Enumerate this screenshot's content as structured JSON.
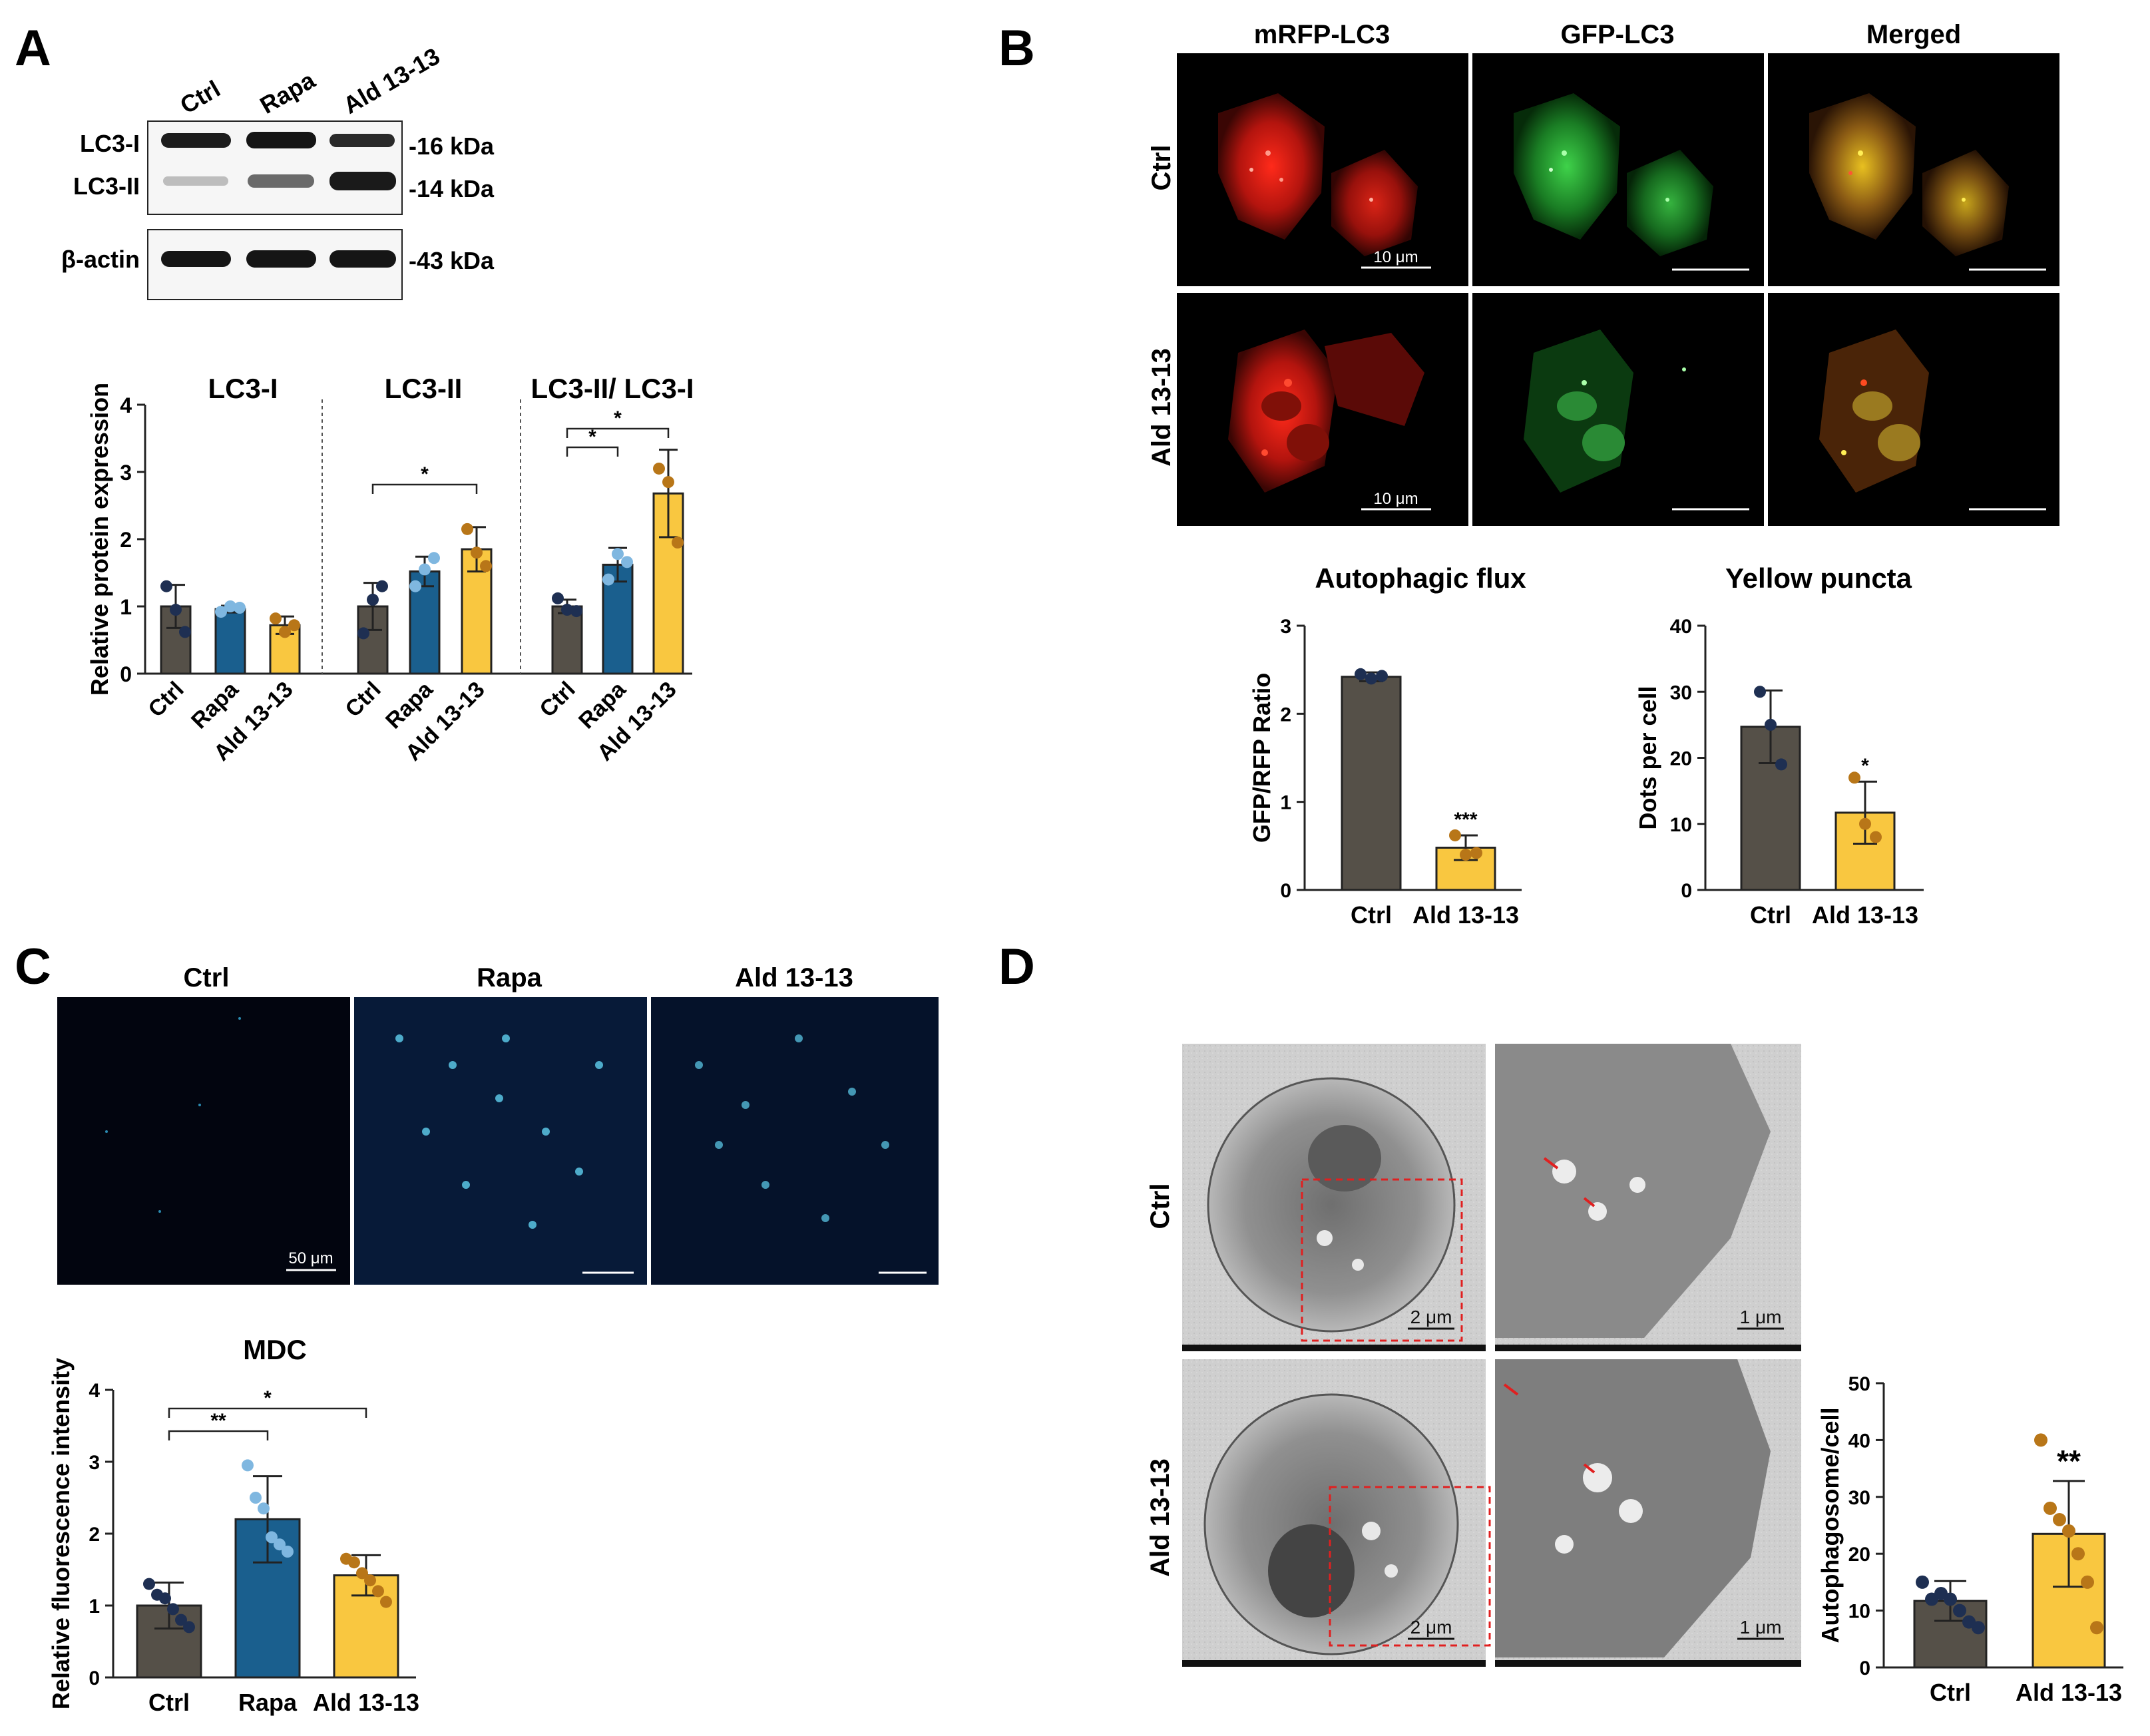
{
  "colors": {
    "ctrl": "#555048",
    "rapa": "#1a5f8e",
    "ald": "#f9c740",
    "ctrl_dot": "#1e2f52",
    "rapa_dot": "#7fb7e0",
    "ald_dot": "#b87618"
  },
  "panels": {
    "A": {
      "letter": "A",
      "blot": {
        "lanes": [
          "Ctrl",
          "Rapa",
          "Ald 13-13"
        ],
        "rows": [
          "LC3-I",
          "LC3-II",
          "β-actin"
        ],
        "sizes": [
          "-16 kDa",
          "-14 kDa",
          "-43 kDa"
        ]
      },
      "ylabel": "Relative protein expression",
      "yticks": [
        "0",
        "1",
        "2",
        "3",
        "4"
      ],
      "xlabels": [
        "Ctrl",
        "Rapa",
        "Ald 13-13"
      ],
      "star": "*"
    },
    "B": {
      "letter": "B",
      "columns": [
        "mRFP-LC3",
        "GFP-LC3",
        "Merged"
      ],
      "rows": [
        "Ctrl",
        "Ald 13-13"
      ],
      "scalebar": "10 μm"
    },
    "C": {
      "letter": "C",
      "columns": [
        "Ctrl",
        "Rapa",
        "Ald 13-13"
      ],
      "scalebar": "50 μm"
    },
    "D": {
      "letter": "D",
      "rows": [
        "Ctrl",
        "Ald 13-13"
      ],
      "scalebar_low": "2 μm",
      "scalebar_high": "1 μm"
    }
  },
  "chart_data": [
    {
      "type": "bar",
      "title": "LC3-I",
      "ylabel": "Relative protein expression",
      "ylim": [
        0,
        4
      ],
      "categories": [
        "Ctrl",
        "Rapa",
        "Ald 13-13"
      ],
      "values": [
        1.0,
        0.96,
        0.72
      ],
      "errors": [
        0.32,
        0.05,
        0.13
      ],
      "points": [
        [
          1.3,
          0.95,
          0.62
        ],
        [
          0.92,
          1.0,
          0.98
        ],
        [
          0.82,
          0.62,
          0.72
        ]
      ],
      "significance": []
    },
    {
      "type": "bar",
      "title": "LC3-II",
      "ylabel": "Relative protein expression",
      "ylim": [
        0,
        4
      ],
      "categories": [
        "Ctrl",
        "Rapa",
        "Ald 13-13"
      ],
      "values": [
        1.0,
        1.52,
        1.85
      ],
      "errors": [
        0.35,
        0.22,
        0.33
      ],
      "points": [
        [
          0.6,
          1.1,
          1.3
        ],
        [
          1.3,
          1.55,
          1.72
        ],
        [
          2.15,
          1.8,
          1.6
        ]
      ],
      "significance": [
        {
          "from": 0,
          "to": 2,
          "label": "*"
        }
      ]
    },
    {
      "type": "bar",
      "title": "LC3-II/ LC3-I",
      "ylabel": "Relative protein expression",
      "ylim": [
        0,
        4
      ],
      "categories": [
        "Ctrl",
        "Rapa",
        "Ald 13-13"
      ],
      "values": [
        1.0,
        1.62,
        2.68
      ],
      "errors": [
        0.1,
        0.25,
        0.65
      ],
      "points": [
        [
          1.12,
          0.95,
          0.93
        ],
        [
          1.4,
          1.78,
          1.66
        ],
        [
          3.05,
          2.85,
          1.95
        ]
      ],
      "significance": [
        {
          "from": 0,
          "to": 1,
          "label": "*"
        },
        {
          "from": 0,
          "to": 2,
          "label": "*"
        }
      ]
    },
    {
      "type": "bar",
      "title": "Autophagic flux",
      "ylabel": "GFP/RFP Ratio",
      "ylim": [
        0,
        3
      ],
      "categories": [
        "Ctrl",
        "Ald 13-13"
      ],
      "values": [
        2.42,
        0.48
      ],
      "errors": [
        0.05,
        0.14
      ],
      "points": [
        [
          2.45,
          2.4,
          2.43
        ],
        [
          0.62,
          0.4,
          0.42
        ]
      ],
      "significance": [
        {
          "over": 1,
          "label": "***"
        }
      ]
    },
    {
      "type": "bar",
      "title": "Yellow puncta",
      "ylabel": "Dots per cell",
      "ylim": [
        0,
        40
      ],
      "categories": [
        "Ctrl",
        "Ald 13-13"
      ],
      "values": [
        24.7,
        11.7
      ],
      "errors": [
        5.5,
        4.7
      ],
      "points": [
        [
          30.0,
          25.0,
          19.0
        ],
        [
          17.0,
          10.0,
          8.0
        ]
      ],
      "significance": [
        {
          "over": 1,
          "label": "*"
        }
      ]
    },
    {
      "type": "bar",
      "title": "MDC",
      "ylabel": "Relative fluorescence intensity",
      "ylim": [
        0,
        4
      ],
      "categories": [
        "Ctrl",
        "Rapa",
        "Ald 13-13"
      ],
      "values": [
        1.0,
        2.2,
        1.42
      ],
      "errors": [
        0.32,
        0.6,
        0.28
      ],
      "points": [
        [
          1.3,
          1.15,
          1.1,
          0.95,
          0.8,
          0.7
        ],
        [
          2.95,
          2.5,
          2.35,
          1.95,
          1.85,
          1.75
        ],
        [
          1.65,
          1.6,
          1.45,
          1.35,
          1.2,
          1.05
        ]
      ],
      "significance": [
        {
          "from": 0,
          "to": 1,
          "label": "**"
        },
        {
          "from": 0,
          "to": 2,
          "label": "*"
        }
      ]
    },
    {
      "type": "bar",
      "title": "",
      "ylabel": "Autophagosome/cell",
      "ylim": [
        0,
        50
      ],
      "categories": [
        "Ctrl",
        "Ald 13-13"
      ],
      "values": [
        11.7,
        23.5
      ],
      "errors": [
        3.5,
        9.3
      ],
      "points": [
        [
          15.0,
          12.0,
          13.0,
          12.0,
          10.0,
          8.0,
          7.0
        ],
        [
          40.0,
          28.0,
          26.0,
          24.0,
          20.0,
          15.0,
          7.0
        ]
      ],
      "significance": [
        {
          "over": 1,
          "label": "**"
        }
      ]
    }
  ]
}
